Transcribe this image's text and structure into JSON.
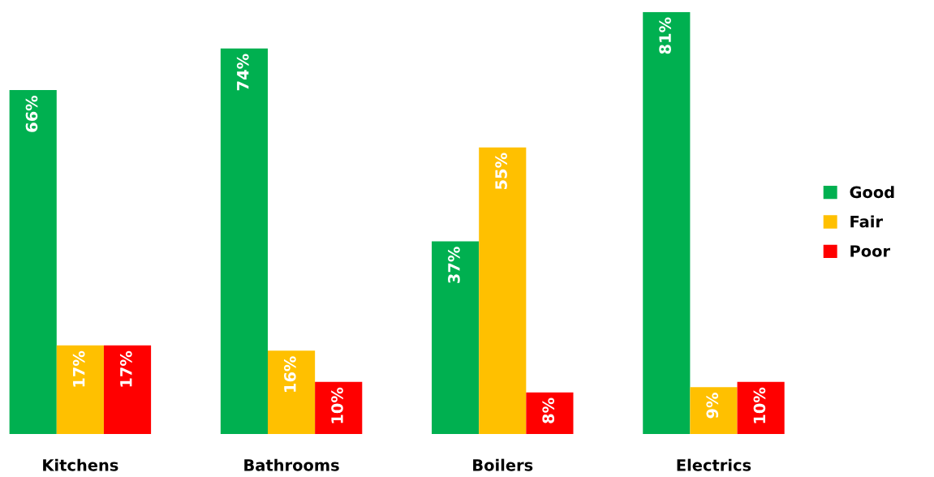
{
  "chart_data": {
    "type": "bar",
    "categories": [
      "Kitchens",
      "Bathrooms",
      "Boilers",
      "Electrics"
    ],
    "series": [
      {
        "name": "Good",
        "color": "#00b050",
        "values": [
          66,
          74,
          37,
          81
        ],
        "value_labels": [
          "66%",
          "74%",
          "37%",
          "81%"
        ]
      },
      {
        "name": "Fair",
        "color": "#ffc000",
        "values": [
          17,
          16,
          55,
          9
        ],
        "value_labels": [
          "17%",
          "16%",
          "55%",
          "9%"
        ]
      },
      {
        "name": "Poor",
        "color": "#ff0000",
        "values": [
          17,
          10,
          8,
          10
        ],
        "value_labels": [
          "17%",
          "10%",
          "8%",
          "10%"
        ]
      }
    ],
    "legend": "right",
    "grid": false
  }
}
